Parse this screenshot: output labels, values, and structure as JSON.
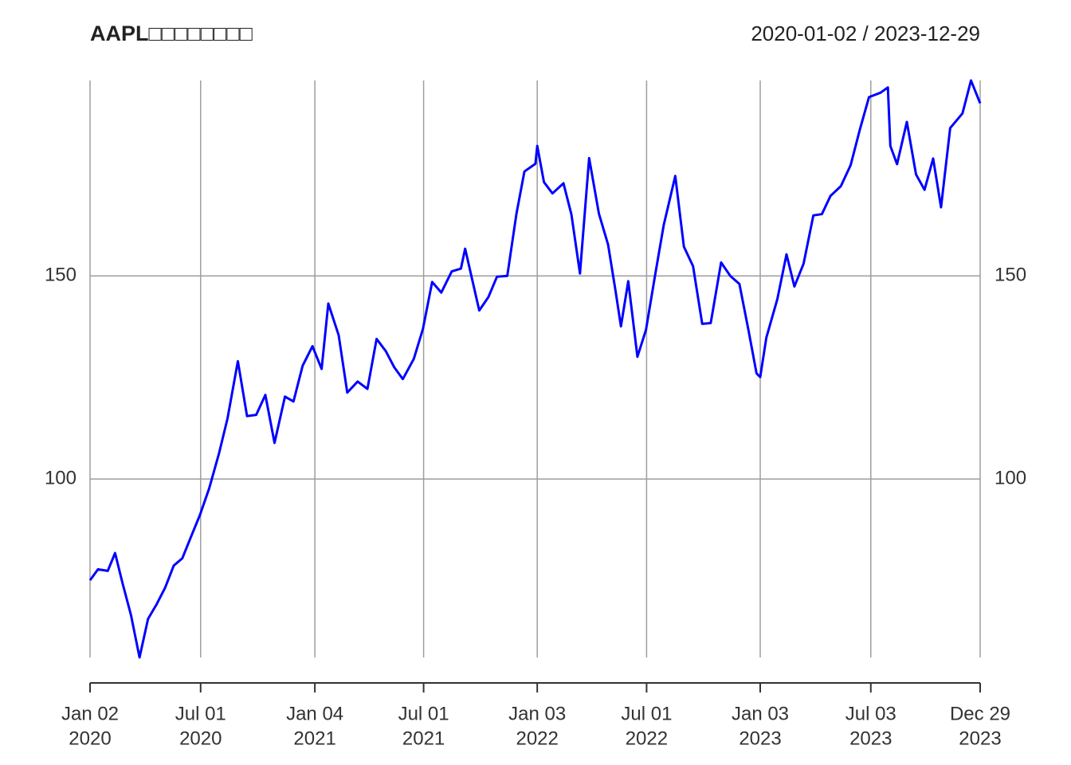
{
  "chart_data": {
    "type": "line",
    "title": "AAPL□□□□□□□□",
    "subtitle": "2020-01-02 / 2023-12-29",
    "x": [
      "2020-01-02",
      "2020-01-15",
      "2020-01-31",
      "2020-02-12",
      "2020-02-24",
      "2020-03-09",
      "2020-03-23",
      "2020-04-06",
      "2020-04-20",
      "2020-05-04",
      "2020-05-18",
      "2020-06-01",
      "2020-06-15",
      "2020-06-30",
      "2020-07-15",
      "2020-07-31",
      "2020-08-14",
      "2020-08-31",
      "2020-09-15",
      "2020-09-30",
      "2020-10-15",
      "2020-10-30",
      "2020-11-16",
      "2020-11-30",
      "2020-12-15",
      "2020-12-31",
      "2021-01-15",
      "2021-01-26",
      "2021-02-12",
      "2021-02-26",
      "2021-03-15",
      "2021-03-31",
      "2021-04-15",
      "2021-04-30",
      "2021-05-14",
      "2021-05-28",
      "2021-06-15",
      "2021-06-30",
      "2021-07-15",
      "2021-07-30",
      "2021-08-16",
      "2021-08-31",
      "2021-09-07",
      "2021-09-30",
      "2021-10-15",
      "2021-10-29",
      "2021-11-15",
      "2021-11-30",
      "2021-12-13",
      "2021-12-31",
      "2022-01-03",
      "2022-01-14",
      "2022-01-28",
      "2022-02-15",
      "2022-02-28",
      "2022-03-14",
      "2022-03-29",
      "2022-04-14",
      "2022-04-29",
      "2022-05-11",
      "2022-05-20",
      "2022-06-01",
      "2022-06-16",
      "2022-06-30",
      "2022-07-15",
      "2022-07-29",
      "2022-08-17",
      "2022-08-31",
      "2022-09-15",
      "2022-09-30",
      "2022-10-14",
      "2022-10-31",
      "2022-11-15",
      "2022-11-30",
      "2022-12-15",
      "2022-12-28",
      "2023-01-03",
      "2023-01-13",
      "2023-01-31",
      "2023-02-15",
      "2023-02-28",
      "2023-03-15",
      "2023-03-31",
      "2023-04-14",
      "2023-04-28",
      "2023-05-15",
      "2023-05-31",
      "2023-06-15",
      "2023-06-30",
      "2023-07-19",
      "2023-07-31",
      "2023-08-04",
      "2023-08-15",
      "2023-08-31",
      "2023-09-15",
      "2023-09-29",
      "2023-10-13",
      "2023-10-26",
      "2023-11-10",
      "2023-11-30",
      "2023-12-14",
      "2023-12-29"
    ],
    "series": [
      {
        "color": "#0000ff",
        "values": [
          75.1,
          77.8,
          77.4,
          81.8,
          74.5,
          66.5,
          56.1,
          65.6,
          69.2,
          73.3,
          78.7,
          80.5,
          85.7,
          91.2,
          97.7,
          106.3,
          114.9,
          129.0,
          115.5,
          115.8,
          120.7,
          108.9,
          120.3,
          119.1,
          127.9,
          132.7,
          127.1,
          143.2,
          135.4,
          121.3,
          124.0,
          122.2,
          134.5,
          131.5,
          127.5,
          124.6,
          129.6,
          137.0,
          148.5,
          145.9,
          151.1,
          151.8,
          156.7,
          141.5,
          144.8,
          149.8,
          150.0,
          165.3,
          175.7,
          177.6,
          182.0,
          173.1,
          170.3,
          172.8,
          165.1,
          150.6,
          179.0,
          165.3,
          157.7,
          146.5,
          137.6,
          148.7,
          130.1,
          136.7,
          150.2,
          162.5,
          174.6,
          157.2,
          152.4,
          138.2,
          138.4,
          153.3,
          150.0,
          148.0,
          136.5,
          126.0,
          125.1,
          134.8,
          144.3,
          155.3,
          147.4,
          153.0,
          164.9,
          165.2,
          169.7,
          172.1,
          177.3,
          186.0,
          194.0,
          195.1,
          196.4,
          182.0,
          177.5,
          187.9,
          175.0,
          171.2,
          178.9,
          166.9,
          186.4,
          190.0,
          198.1,
          192.5
        ]
      }
    ],
    "xlim": [
      "2020-01-02",
      "2023-12-29"
    ],
    "xticks": [
      {
        "value": "2020-01-02",
        "label": [
          "Jan 02",
          "2020"
        ]
      },
      {
        "value": "2020-07-01",
        "label": [
          "Jul 01",
          "2020"
        ]
      },
      {
        "value": "2021-01-04",
        "label": [
          "Jan 04",
          "2021"
        ]
      },
      {
        "value": "2021-07-01",
        "label": [
          "Jul 01",
          "2021"
        ]
      },
      {
        "value": "2022-01-03",
        "label": [
          "Jan 03",
          "2022"
        ]
      },
      {
        "value": "2022-07-01",
        "label": [
          "Jul 01",
          "2022"
        ]
      },
      {
        "value": "2023-01-03",
        "label": [
          "Jan 03",
          "2023"
        ]
      },
      {
        "value": "2023-07-03",
        "label": [
          "Jul 03",
          "2023"
        ]
      },
      {
        "value": "2023-12-29",
        "label": [
          "Dec 29",
          "2023"
        ]
      }
    ],
    "ylim": [
      56.1,
      198.1
    ],
    "yticks": [
      100,
      150
    ],
    "grid": true
  }
}
